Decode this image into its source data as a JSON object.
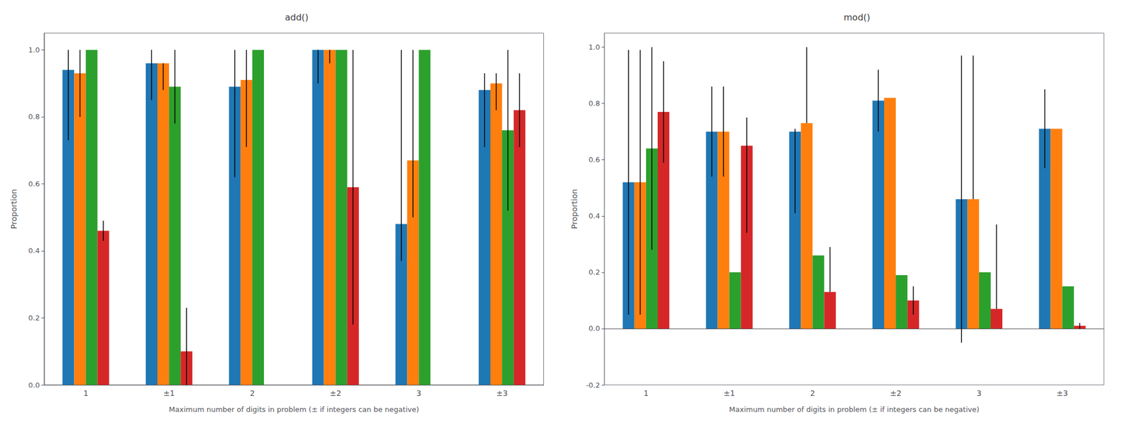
{
  "chart_data": [
    {
      "type": "bar",
      "title": "add()",
      "xlabel": "Maximum number of digits in problem (± if integers can be negative)",
      "ylabel": "Proportion",
      "categories": [
        "1",
        "±1",
        "2",
        "±2",
        "3",
        "±3"
      ],
      "series": [
        {
          "color": "#1f77b4",
          "values": [
            0.94,
            0.96,
            0.89,
            1.0,
            0.48,
            0.88
          ],
          "error_lo": [
            0.21,
            0.11,
            0.27,
            0.1,
            0.11,
            0.17
          ],
          "error_hi": [
            0.06,
            0.04,
            0.11,
            0.0,
            0.52,
            0.05
          ]
        },
        {
          "color": "#ff7f0e",
          "values": [
            0.93,
            0.96,
            0.91,
            1.0,
            0.67,
            0.9
          ],
          "error_lo": [
            0.13,
            0.08,
            0.2,
            0.04,
            0.17,
            0.08
          ],
          "error_hi": [
            0.07,
            0.0,
            0.09,
            0.0,
            0.33,
            0.03
          ]
        },
        {
          "color": "#2ca02c",
          "values": [
            1.0,
            0.89,
            1.0,
            1.0,
            1.0,
            0.76
          ],
          "error_lo": [
            0.0,
            0.11,
            0.0,
            0.0,
            0.0,
            0.24
          ],
          "error_hi": [
            0.0,
            0.11,
            0.0,
            0.0,
            0.0,
            0.24
          ]
        },
        {
          "color": "#d62728",
          "values": [
            0.46,
            0.1,
            0.0,
            0.59,
            0.0,
            0.82
          ],
          "error_lo": [
            0.03,
            0.1,
            0.0,
            0.41,
            0.0,
            0.11
          ],
          "error_hi": [
            0.03,
            0.13,
            0.0,
            0.41,
            0.0,
            0.11
          ]
        }
      ],
      "ylim": [
        0.0,
        1.05
      ],
      "yticks": [
        {
          "value": 0,
          "label": "0.0"
        },
        0.2,
        0.4,
        0.6,
        0.8,
        {
          "value": 1,
          "label": "1.0"
        }
      ],
      "grid": false
    },
    {
      "type": "bar",
      "title": "mod()",
      "xlabel": "Maximum number of digits in problem (± if integers can be negative)",
      "ylabel": "Proportion",
      "categories": [
        "1",
        "±1",
        "2",
        "±2",
        "3",
        "±3"
      ],
      "series": [
        {
          "color": "#1f77b4",
          "values": [
            0.52,
            0.7,
            0.7,
            0.81,
            0.46,
            0.71
          ],
          "error_lo": [
            0.47,
            0.16,
            0.29,
            0.11,
            0.51,
            0.14
          ],
          "error_hi": [
            0.47,
            0.16,
            0.01,
            0.11,
            0.51,
            0.14
          ]
        },
        {
          "color": "#ff7f0e",
          "values": [
            0.52,
            0.7,
            0.73,
            0.82,
            0.46,
            0.71
          ],
          "error_lo": [
            0.47,
            0.16,
            0.0,
            0.0,
            0.0,
            0.0
          ],
          "error_hi": [
            0.47,
            0.16,
            0.27,
            0.0,
            0.51,
            0.0
          ]
        },
        {
          "color": "#2ca02c",
          "values": [
            0.64,
            0.2,
            0.26,
            0.19,
            0.2,
            0.15
          ],
          "error_lo": [
            0.36,
            0.0,
            0.0,
            0.0,
            0.0,
            0.0
          ],
          "error_hi": [
            0.36,
            0.0,
            0.0,
            0.0,
            0.0,
            0.0
          ]
        },
        {
          "color": "#d62728",
          "values": [
            0.77,
            0.65,
            0.13,
            0.1,
            0.07,
            0.01
          ],
          "error_lo": [
            0.18,
            0.31,
            0.0,
            0.05,
            0.0,
            0.01
          ],
          "error_hi": [
            0.18,
            0.1,
            0.16,
            0.05,
            0.3,
            0.01
          ]
        }
      ],
      "ylim": [
        -0.2,
        1.05
      ],
      "yticks": [
        -0.2,
        {
          "value": 0,
          "label": "0.0"
        },
        0.2,
        0.4,
        0.6,
        0.8,
        {
          "value": 1,
          "label": "1.0"
        }
      ],
      "grid": false
    }
  ]
}
